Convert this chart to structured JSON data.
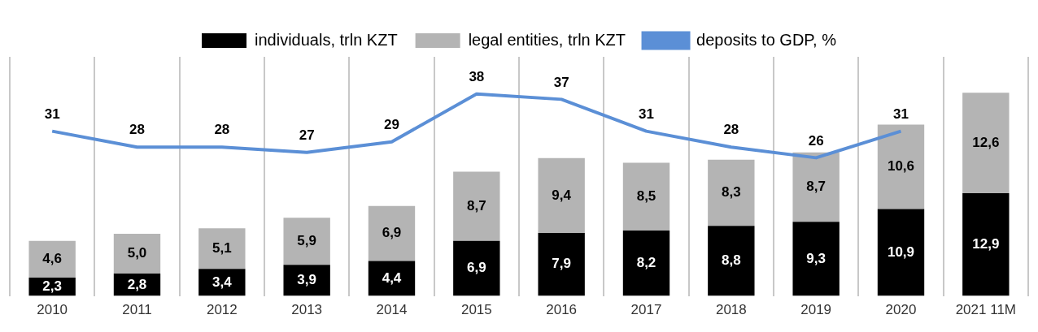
{
  "chart_data": {
    "type": "bar",
    "stacked": true,
    "grid": "x",
    "legend": "top",
    "categories": [
      "2010",
      "2011",
      "2012",
      "2013",
      "2014",
      "2015",
      "2016",
      "2017",
      "2018",
      "2019",
      "2020",
      "2021 11M"
    ],
    "series": [
      {
        "name": "individuals, trln KZT",
        "color": "#000000",
        "values": [
          2.3,
          2.8,
          3.4,
          3.9,
          4.4,
          6.9,
          7.9,
          8.2,
          8.8,
          9.3,
          10.9,
          12.9
        ],
        "value_labels": [
          "2,3",
          "2,8",
          "3,4",
          "3,9",
          "4,4",
          "6,9",
          "7,9",
          "8,2",
          "8,8",
          "9,3",
          "10,9",
          "12,9"
        ]
      },
      {
        "name": "legal entities, trln KZT",
        "color": "#b4b4b4",
        "values": [
          4.6,
          5.0,
          5.1,
          5.9,
          6.9,
          8.7,
          9.4,
          8.5,
          8.3,
          8.7,
          10.6,
          12.6
        ],
        "value_labels": [
          "4,6",
          "5,0",
          "5,1",
          "5,9",
          "6,9",
          "8,7",
          "9,4",
          "8,5",
          "8,3",
          "8,7",
          "10,6",
          "12,6"
        ]
      },
      {
        "name": "deposits to GDP, %",
        "type": "line",
        "axis": "y2",
        "color": "#5b8fd6",
        "marker": "none",
        "line_style": "solid",
        "values": [
          31,
          28,
          28,
          27,
          29,
          38,
          37,
          31,
          28,
          26,
          31,
          null
        ],
        "value_labels": [
          "31",
          "28",
          "28",
          "27",
          "29",
          "38",
          "37",
          "31",
          "28",
          "26",
          "31",
          null
        ]
      }
    ]
  }
}
